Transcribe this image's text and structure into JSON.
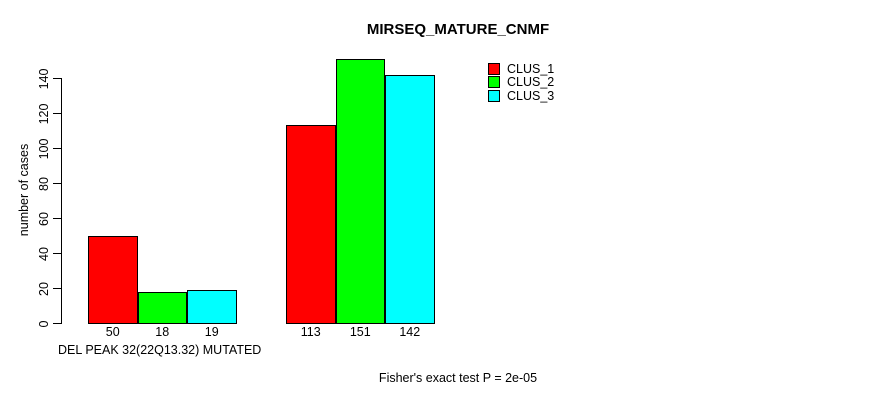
{
  "chart_data": {
    "type": "bar",
    "title": "MIRSEQ_MATURE_CNMF",
    "ylabel": "number of cases",
    "xlabel": "DEL PEAK 32(22Q13.32) MUTATED",
    "footnote": "Fisher's exact test P = 2e-05",
    "group_count": 2,
    "series": [
      {
        "name": "CLUS_1",
        "color": "#ff0000",
        "values": [
          50,
          113
        ]
      },
      {
        "name": "CLUS_2",
        "color": "#00ff00",
        "values": [
          18,
          151
        ]
      },
      {
        "name": "CLUS_3",
        "color": "#00ffff",
        "values": [
          19,
          142
        ]
      }
    ],
    "bar_value_labels": [
      [
        "50",
        "18",
        "19"
      ],
      [
        "113",
        "151",
        "142"
      ]
    ],
    "y_ticks": [
      0,
      20,
      40,
      60,
      80,
      100,
      120,
      140
    ],
    "ylim": [
      0,
      140
    ],
    "grid": false,
    "legend_position": "top-right",
    "axis_color": "#000000",
    "background_color": "#ffffff"
  }
}
